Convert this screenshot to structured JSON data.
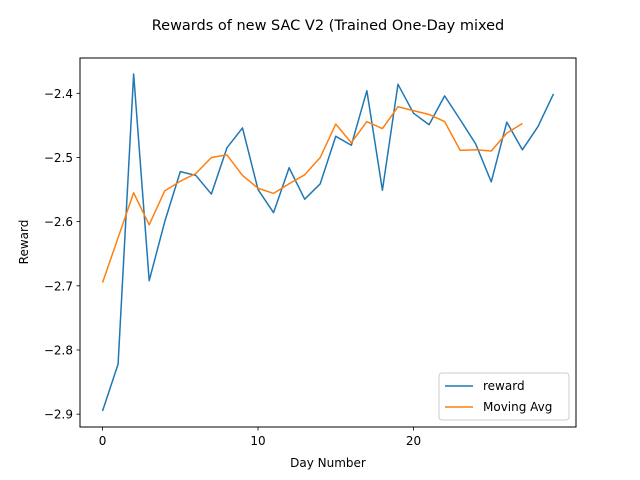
{
  "chart_data": {
    "type": "line",
    "title": "Rewards of new SAC V2 (Trained One-Day mixed",
    "xlabel": "Day Number",
    "ylabel": "Reward",
    "xlim": [
      -1.45,
      30.45
    ],
    "ylim": [
      -2.92,
      -2.345
    ],
    "xticks": [
      0,
      10,
      20
    ],
    "yticks": [
      -2.9,
      -2.8,
      -2.7,
      -2.6,
      -2.5,
      -2.4
    ],
    "ytick_labels": [
      "−2.9",
      "−2.8",
      "−2.7",
      "−2.6",
      "−2.5",
      "−2.4"
    ],
    "grid": false,
    "legend_position": "lower-right",
    "series": [
      {
        "name": "reward",
        "color": "#1f77b4",
        "x": [
          0,
          1,
          2,
          3,
          4,
          5,
          6,
          7,
          8,
          9,
          10,
          11,
          12,
          13,
          14,
          15,
          16,
          17,
          18,
          19,
          20,
          21,
          22,
          23,
          24,
          25,
          26,
          27,
          28,
          29
        ],
        "values": [
          -2.895,
          -2.822,
          -2.37,
          -2.692,
          -2.6,
          -2.522,
          -2.528,
          -2.557,
          -2.485,
          -2.454,
          -2.55,
          -2.586,
          -2.516,
          -2.565,
          -2.541,
          -2.467,
          -2.481,
          -2.396,
          -2.551,
          -2.386,
          -2.431,
          -2.449,
          -2.404,
          -2.441,
          -2.479,
          -2.538,
          -2.445,
          -2.488,
          -2.452,
          -2.401
        ]
      },
      {
        "name": "Moving Avg",
        "color": "#ff7f0e",
        "x": [
          0,
          1,
          2,
          3,
          4,
          5,
          6,
          7,
          8,
          9,
          10,
          11,
          12,
          13,
          14,
          15,
          16,
          17,
          18,
          19,
          20,
          21,
          22,
          23,
          24,
          25,
          26,
          27
        ],
        "values": [
          -2.695,
          -2.625,
          -2.555,
          -2.605,
          -2.552,
          -2.537,
          -2.525,
          -2.5,
          -2.496,
          -2.528,
          -2.548,
          -2.556,
          -2.541,
          -2.527,
          -2.5,
          -2.448,
          -2.477,
          -2.444,
          -2.455,
          -2.421,
          -2.427,
          -2.433,
          -2.444,
          -2.489,
          -2.488,
          -2.49,
          -2.462,
          -2.447
        ]
      }
    ]
  }
}
